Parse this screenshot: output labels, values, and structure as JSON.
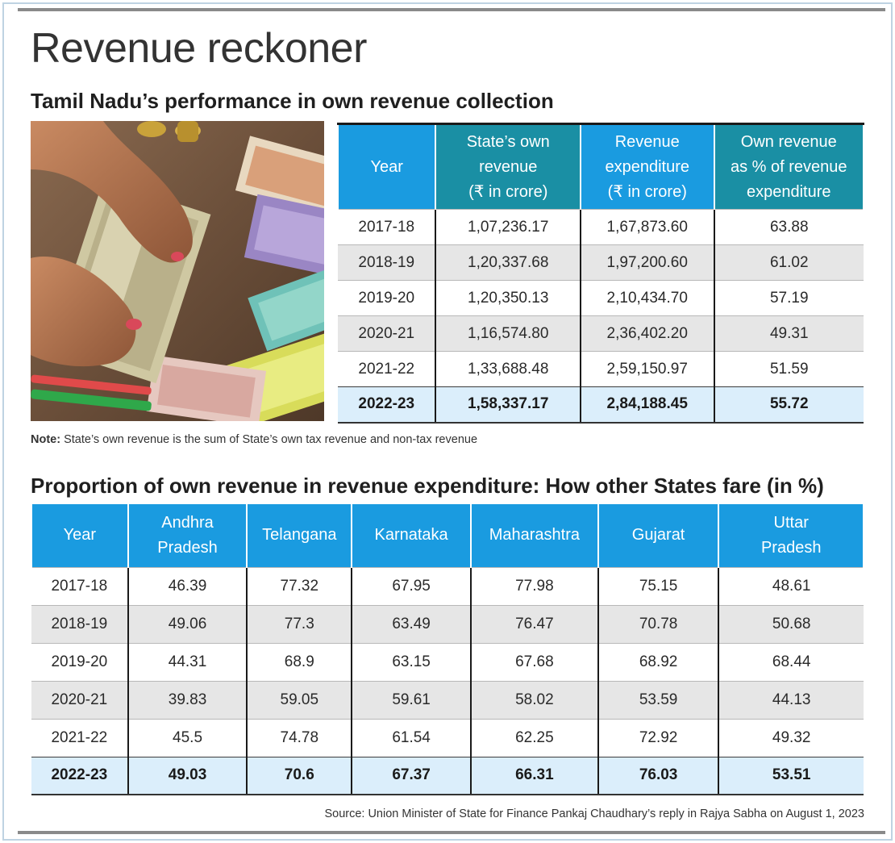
{
  "title": "Revenue reckoner",
  "subtitle": "Tamil Nadu’s performance in own revenue collection",
  "note_label": "Note:",
  "note_text": " State’s own revenue is the sum of State’s own tax revenue and non-tax revenue",
  "subtitle2": "Proportion of own revenue in revenue expenditure: How other States fare (in %)",
  "source": "Source: Union Minister of State for Finance Pankaj Chaudhary’s reply in Rajya Sabha on August 1, 2023",
  "colors": {
    "header_blue": "#1a9be0",
    "header_teal": "#1a8fa4",
    "highlight_row": "#dbeefb",
    "shaded_row": "#e6e6e6"
  },
  "photo_icon": "money-photo",
  "chart_data": [
    {
      "type": "table",
      "title": "Tamil Nadu’s performance in own revenue collection",
      "columns": [
        "Year",
        "State’s own revenue (₹ in crore)",
        "Revenue expenditure (₹ in crore)",
        "Own revenue as % of revenue expenditure"
      ],
      "column_lines": [
        [
          "Year"
        ],
        [
          "State’s own",
          "revenue",
          "(₹ in crore)"
        ],
        [
          "Revenue",
          "expenditure",
          "(₹ in crore)"
        ],
        [
          "Own revenue",
          "as % of revenue",
          "expenditure"
        ]
      ],
      "rows": [
        [
          "2017-18",
          "1,07,236.17",
          "1,67,873.60",
          "63.88"
        ],
        [
          "2018-19",
          "1,20,337.68",
          "1,97,200.60",
          "61.02"
        ],
        [
          "2019-20",
          "1,20,350.13",
          "2,10,434.70",
          "57.19"
        ],
        [
          "2020-21",
          "1,16,574.80",
          "2,36,402.20",
          "49.31"
        ],
        [
          "2021-22",
          "1,33,688.48",
          "2,59,150.97",
          "51.59"
        ],
        [
          "2022-23",
          "1,58,337.17",
          "2,84,188.45",
          "55.72"
        ]
      ],
      "highlight_row": "2022-23"
    },
    {
      "type": "table",
      "title": "Proportion of own revenue in revenue expenditure: How other States fare (in %)",
      "columns": [
        "Year",
        "Andhra Pradesh",
        "Telangana",
        "Karnataka",
        "Maharashtra",
        "Gujarat",
        "Uttar Pradesh"
      ],
      "column_lines": [
        [
          "Year"
        ],
        [
          "Andhra",
          "Pradesh"
        ],
        [
          "Telangana"
        ],
        [
          "Karnataka"
        ],
        [
          "Maharashtra"
        ],
        [
          "Gujarat"
        ],
        [
          "Uttar",
          "Pradesh"
        ]
      ],
      "rows": [
        [
          "2017-18",
          "46.39",
          "77.32",
          "67.95",
          "77.98",
          "75.15",
          "48.61"
        ],
        [
          "2018-19",
          "49.06",
          "77.3",
          "63.49",
          "76.47",
          "70.78",
          "50.68"
        ],
        [
          "2019-20",
          "44.31",
          "68.9",
          "63.15",
          "67.68",
          "68.92",
          "68.44"
        ],
        [
          "2020-21",
          "39.83",
          "59.05",
          "59.61",
          "58.02",
          "53.59",
          "44.13"
        ],
        [
          "2021-22",
          "45.5",
          "74.78",
          "61.54",
          "62.25",
          "72.92",
          "49.32"
        ],
        [
          "2022-23",
          "49.03",
          "70.6",
          "67.37",
          "66.31",
          "76.03",
          "53.51"
        ]
      ],
      "highlight_row": "2022-23"
    }
  ]
}
